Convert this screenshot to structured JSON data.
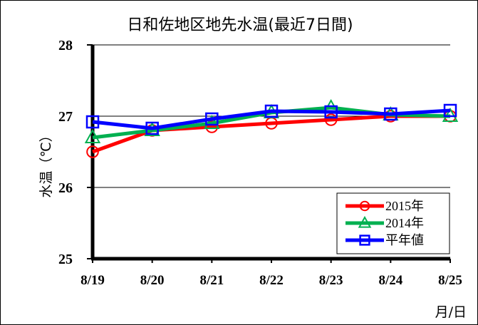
{
  "chart_data": {
    "type": "line",
    "title": "日和佐地区地先水温(最近7日間)",
    "xlabel": "月/日",
    "ylabel": "水温（℃）",
    "categories": [
      "8/19",
      "8/20",
      "8/21",
      "8/22",
      "8/23",
      "8/24",
      "8/25"
    ],
    "ylim": [
      25,
      28
    ],
    "yticks": [
      25,
      26,
      27,
      28
    ],
    "grid": true,
    "legend_position": "bottom-right",
    "series": [
      {
        "name": "2015年",
        "color": "#ff0000",
        "marker": "circle",
        "values": [
          26.5,
          26.8,
          26.85,
          26.9,
          26.95,
          27.0,
          27.0
        ]
      },
      {
        "name": "2014年",
        "color": "#00b050",
        "marker": "triangle",
        "values": [
          26.7,
          26.8,
          26.9,
          27.05,
          27.12,
          27.02,
          27.0
        ]
      },
      {
        "name": "平年値",
        "color": "#0000ff",
        "marker": "square",
        "values": [
          26.92,
          26.83,
          26.96,
          27.07,
          27.06,
          27.03,
          27.08
        ]
      }
    ]
  }
}
